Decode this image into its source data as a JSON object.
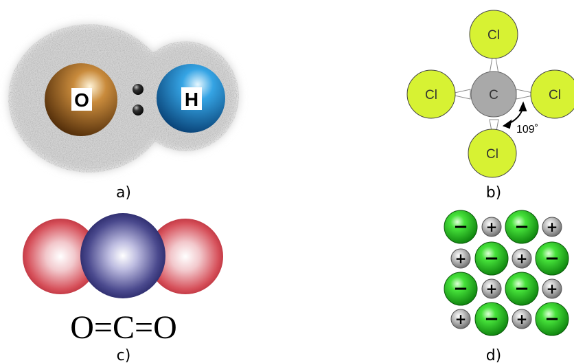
{
  "panels": {
    "a": {
      "caption": "a)",
      "atoms": [
        {
          "symbol": "O",
          "color": "#7a4a17"
        },
        {
          "symbol": "H",
          "color": "#1c7fc4"
        }
      ],
      "electron_pair_icon": "electron-pair-dots"
    },
    "b": {
      "caption": "b)",
      "center": {
        "symbol": "C",
        "color": "#a9a9a9"
      },
      "ligands": [
        "Cl",
        "Cl",
        "Cl",
        "Cl"
      ],
      "ligand_color": "#d7f233",
      "bond_angle": "109˚"
    },
    "c": {
      "caption": "c)",
      "formula": "O=C=O",
      "center_color": "#2c2a6e",
      "end_color": "#c43b46"
    },
    "d": {
      "caption": "d)",
      "anion_sign": "−",
      "cation_sign": "+",
      "anion_color": "#1fb81f",
      "cation_color": "#8f8f8f"
    }
  }
}
